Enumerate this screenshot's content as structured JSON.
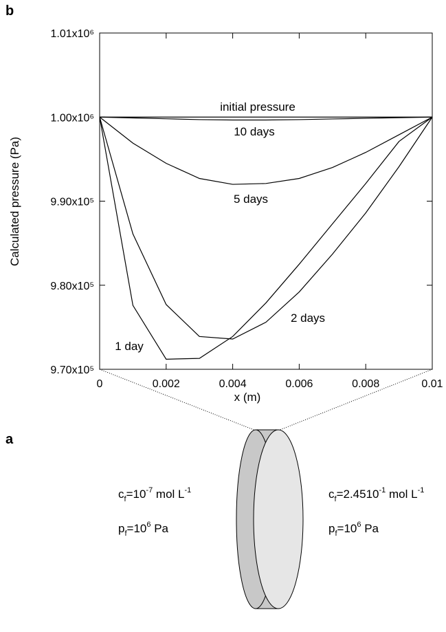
{
  "chart_data": {
    "type": "line",
    "panel_label": "b",
    "y_label": "Calculated pressure (Pa)",
    "x_label": "x (m)",
    "xlim": [
      0,
      0.01
    ],
    "xticks": [
      0,
      0.002,
      0.004,
      0.006,
      0.008,
      0.01
    ],
    "ylim": [
      970000,
      1010000
    ],
    "yticks": [
      {
        "value": 970000,
        "label": "9.70x10⁵"
      },
      {
        "value": 980000,
        "label": "9.80x10⁵"
      },
      {
        "value": 990000,
        "label": "9.90x10⁵"
      },
      {
        "value": 1000000,
        "label": "1.00x10⁶"
      },
      {
        "value": 1010000,
        "label": "1.01x10⁶"
      }
    ],
    "x": [
      0,
      0.001,
      0.002,
      0.003,
      0.004,
      0.005,
      0.006,
      0.007,
      0.008,
      0.009,
      0.01
    ],
    "series": [
      {
        "name": "initial pressure",
        "color": "#000000",
        "values": [
          1000000,
          1000000,
          1000000,
          1000000,
          1000000,
          1000000,
          1000000,
          1000000,
          1000000,
          1000000,
          1000000
        ]
      },
      {
        "name": "10 days",
        "color": "#000000",
        "values": [
          1000000,
          999900,
          999800,
          999700,
          999650,
          999650,
          999700,
          999780,
          999850,
          999930,
          1000000
        ]
      },
      {
        "name": "5 days",
        "color": "#000000",
        "values": [
          1000000,
          996900,
          994500,
          992700,
          992000,
          992100,
          992700,
          994000,
          995800,
          997900,
          1000000
        ]
      },
      {
        "name": "2 days",
        "color": "#000000",
        "values": [
          1000000,
          986100,
          977700,
          973900,
          973600,
          975600,
          979200,
          983700,
          988600,
          994100,
          1000000
        ]
      },
      {
        "name": "1 day",
        "color": "#000000",
        "values": [
          1000000,
          977600,
          971200,
          971300,
          973900,
          977900,
          982500,
          987300,
          992100,
          997100,
          1000000
        ]
      }
    ]
  },
  "diagram": {
    "panel_label": "a",
    "left": {
      "c": [
        "c",
        "f",
        "=10",
        "-7",
        " mol L",
        "-1"
      ],
      "p": [
        "p",
        "f",
        "=10",
        "6",
        " Pa"
      ]
    },
    "right": {
      "c": [
        "c",
        "f",
        "=2.4510",
        "-1",
        " mol L",
        "-1"
      ],
      "p": [
        "p",
        "f",
        "=10",
        "6",
        " Pa"
      ]
    }
  }
}
